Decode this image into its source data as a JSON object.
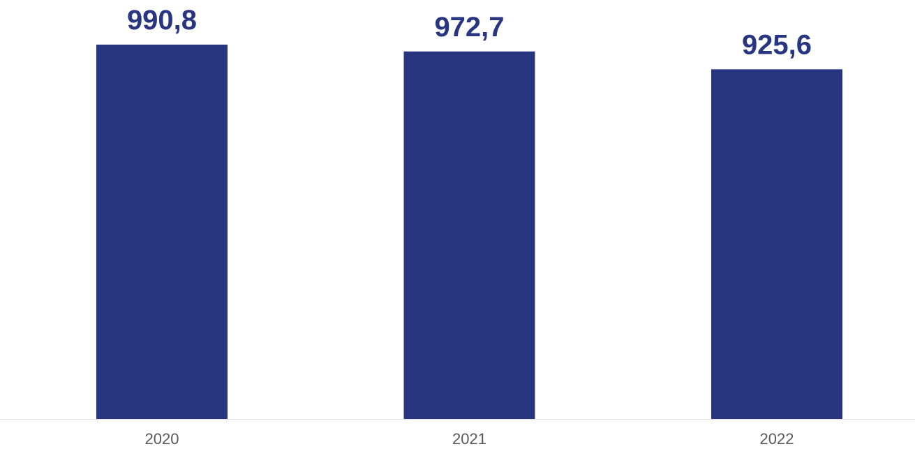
{
  "chart_data": {
    "type": "bar",
    "categories": [
      "2020",
      "2021",
      "2022"
    ],
    "values": [
      990.8,
      972.7,
      925.6
    ],
    "value_labels": [
      "990,8",
      "972,7",
      "925,6"
    ],
    "title": "",
    "xlabel": "",
    "ylabel": "",
    "ylim": [
      0,
      990.8
    ],
    "grid": false,
    "legend": "none"
  },
  "colors": {
    "bar": "#283580",
    "data_label": "#283580",
    "axis_line": "#e6e6e6",
    "tick_label": "#595959",
    "background": "#ffffff"
  }
}
